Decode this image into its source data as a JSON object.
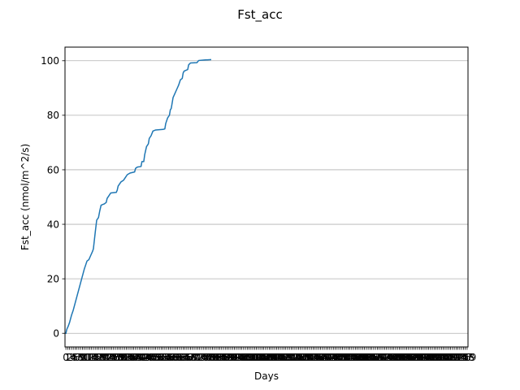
{
  "chart_data": {
    "type": "line",
    "title": "Fst_acc",
    "xlabel": "Days",
    "ylabel": "Fst_acc (nmol/m^2/s)",
    "ylim": [
      -5,
      105
    ],
    "yticks": [
      0,
      20,
      40,
      60,
      80,
      100
    ],
    "ygrid": true,
    "xgrid": false,
    "xlim": [
      -0.5,
      219.5
    ],
    "xtick_count": 220,
    "series": [
      {
        "color": "#1f77b4",
        "points": [
          [
            0,
            0.0
          ],
          [
            0.5,
            1.5
          ],
          [
            1.2,
            2.5
          ],
          [
            2,
            4
          ],
          [
            3,
            6.5
          ],
          [
            4,
            8.5
          ],
          [
            5,
            11
          ],
          [
            6,
            13.5
          ],
          [
            7,
            16
          ],
          [
            8,
            18.5
          ],
          [
            9,
            21
          ],
          [
            10,
            23.5
          ],
          [
            11,
            25.5
          ],
          [
            11.5,
            26.5
          ],
          [
            12.5,
            27
          ],
          [
            13.5,
            28.5
          ],
          [
            14.5,
            30
          ],
          [
            15,
            31
          ],
          [
            15.5,
            34
          ],
          [
            16,
            37
          ],
          [
            16.8,
            41.5
          ],
          [
            17.8,
            42.5
          ],
          [
            18.5,
            45
          ],
          [
            19.2,
            47
          ],
          [
            21,
            47.5
          ],
          [
            22,
            48
          ],
          [
            22.5,
            49.5
          ],
          [
            23.5,
            50.5
          ],
          [
            24.5,
            51.5
          ],
          [
            27.5,
            51.7
          ],
          [
            28,
            52.5
          ],
          [
            28.5,
            54
          ],
          [
            30,
            55.5
          ],
          [
            31.5,
            56.2
          ],
          [
            32.5,
            57.2
          ],
          [
            33.5,
            58.2
          ],
          [
            35,
            58.8
          ],
          [
            37.5,
            59.2
          ],
          [
            38,
            60.5
          ],
          [
            39,
            61
          ],
          [
            41,
            61.2
          ],
          [
            41.5,
            63
          ],
          [
            42.5,
            63
          ],
          [
            43,
            65.5
          ],
          [
            43.5,
            67
          ],
          [
            44,
            68.5
          ],
          [
            45,
            69.5
          ],
          [
            45.5,
            71.5
          ],
          [
            46.5,
            72.5
          ],
          [
            47.5,
            74.2
          ],
          [
            49,
            74.6
          ],
          [
            53,
            74.8
          ],
          [
            54,
            75
          ],
          [
            54.5,
            77
          ],
          [
            55.5,
            79
          ],
          [
            56.5,
            80
          ],
          [
            57,
            82
          ],
          [
            57.5,
            82.5
          ],
          [
            58,
            84.5
          ],
          [
            58.5,
            86.5
          ],
          [
            59.5,
            88
          ],
          [
            60.5,
            89.5
          ],
          [
            61.5,
            91
          ],
          [
            62.5,
            93
          ],
          [
            63.5,
            93.5
          ],
          [
            64,
            95.5
          ],
          [
            64.5,
            96.2
          ],
          [
            66.5,
            96.8
          ],
          [
            67,
            98.5
          ],
          [
            68,
            99.2
          ],
          [
            71.5,
            99.3
          ],
          [
            72.5,
            100.1
          ],
          [
            76,
            100.3
          ],
          [
            79,
            100.4
          ]
        ]
      }
    ]
  }
}
